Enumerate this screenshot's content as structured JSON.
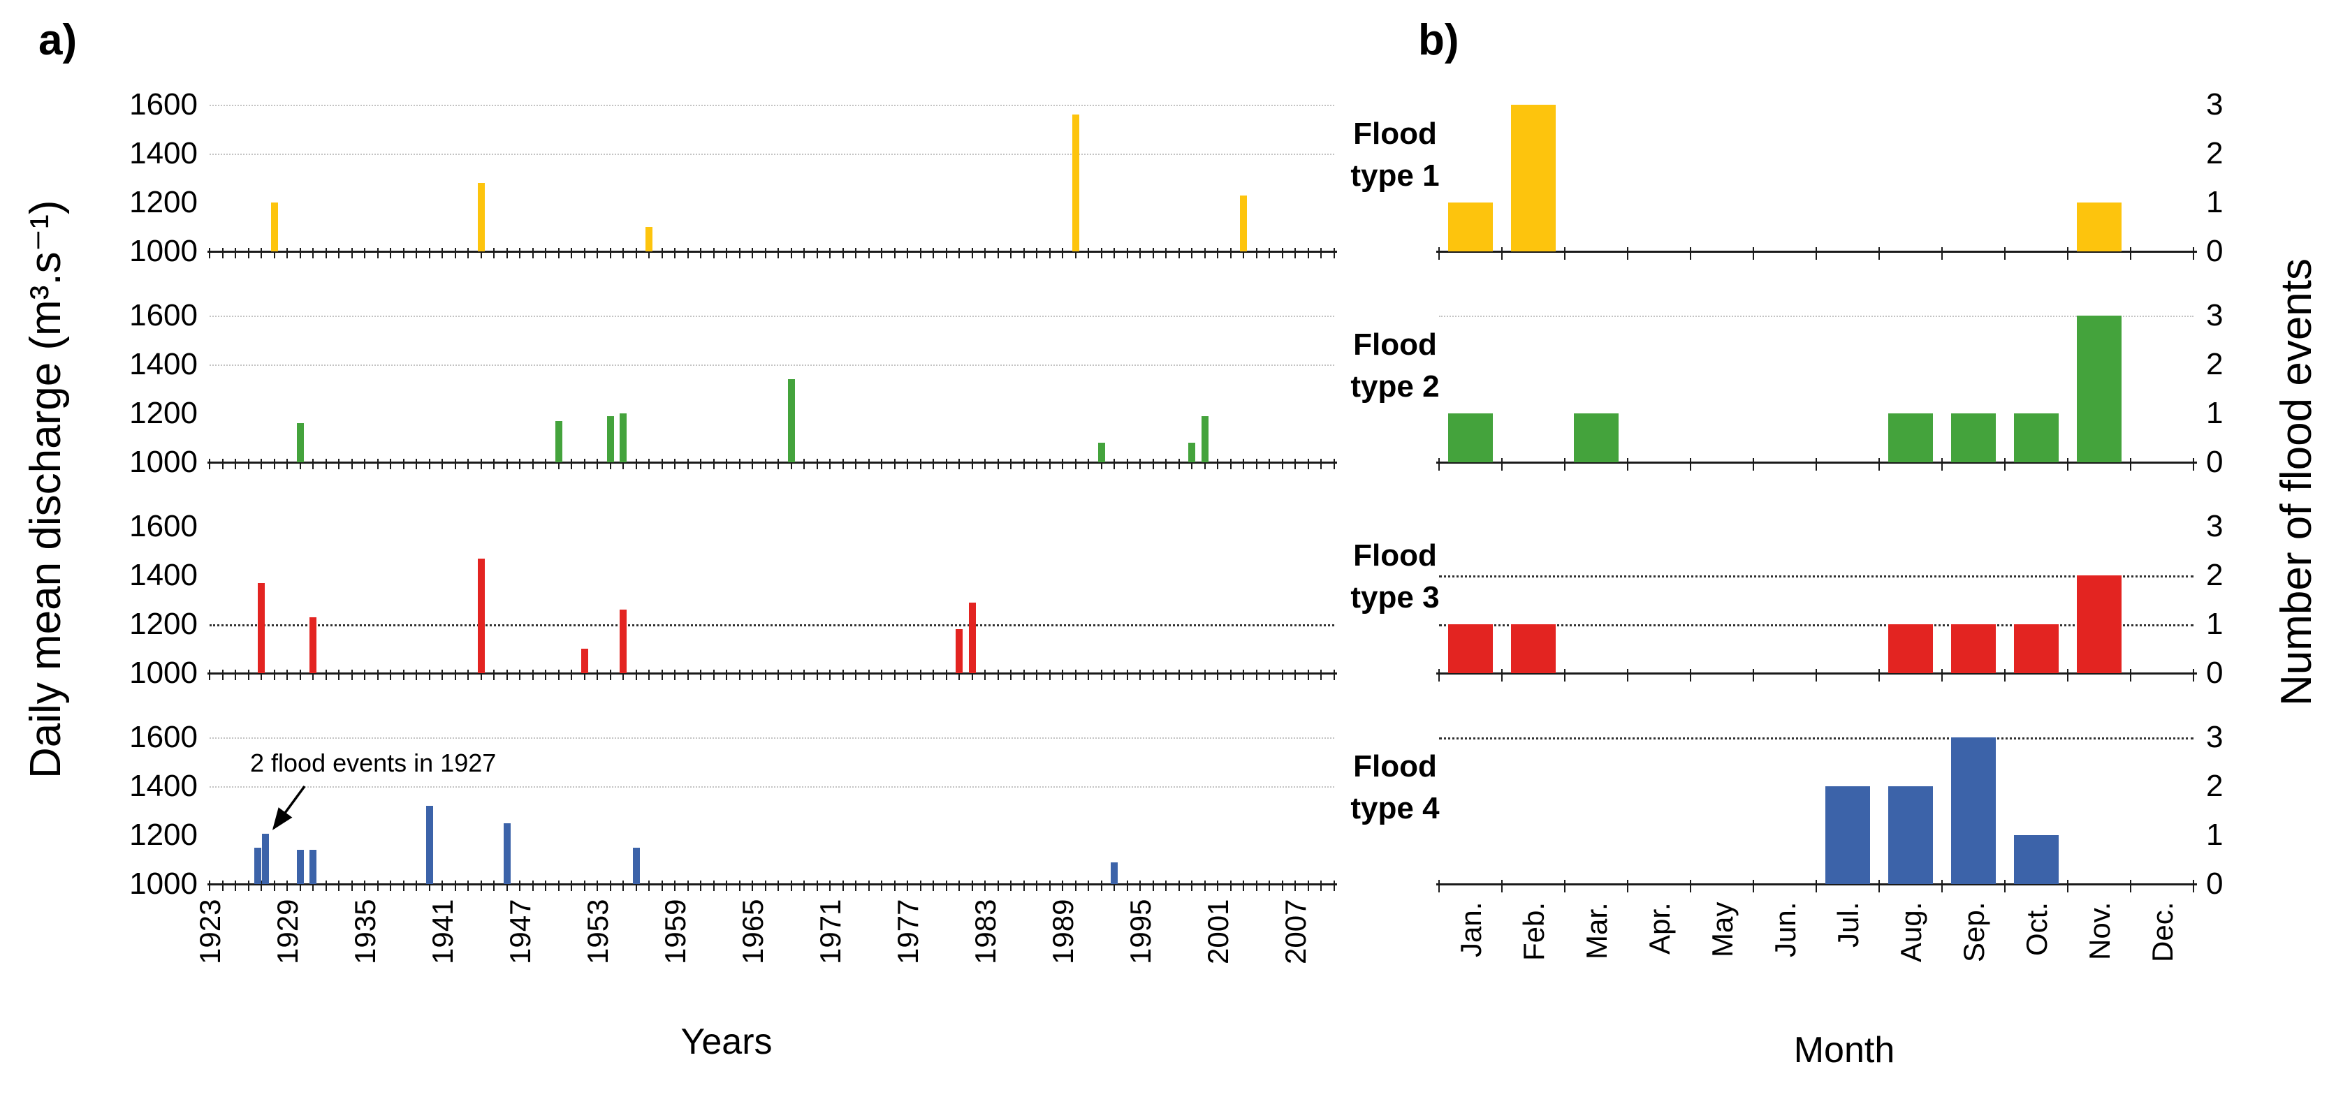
{
  "figure": {
    "panel_a_tag": "a)",
    "panel_b_tag": "b)",
    "background_color": "#ffffff",
    "axis_color": "#1a1a1a",
    "gridline_light_color": "#c3c3c3",
    "gridline_dark_color": "#2f2f2f"
  },
  "chart_data": {
    "type": "bar",
    "panel_a": {
      "x_axis": {
        "label": "Years",
        "start": 1923,
        "end": 2010,
        "tick_every_years": 1,
        "tick_labels": [
          1923,
          1929,
          1935,
          1941,
          1947,
          1953,
          1959,
          1965,
          1971,
          1977,
          1983,
          1989,
          1995,
          2001,
          2007
        ]
      },
      "y_axis": {
        "label": "Daily mean discharge (m³.s⁻¹)",
        "ticks": [
          1000,
          1200,
          1400,
          1600
        ],
        "ylim": [
          1000,
          1650
        ]
      },
      "charts": [
        {
          "flood_type": "Flood type 1",
          "color": "#FDC40D",
          "gridlines": {
            "light": [
              1400,
              1600
            ],
            "dark": []
          },
          "events": [
            {
              "year": 1928,
              "discharge": 1200
            },
            {
              "year": 1944,
              "discharge": 1280
            },
            {
              "year": 1957,
              "discharge": 1100
            },
            {
              "year": 1990,
              "discharge": 1560
            },
            {
              "year": 2003,
              "discharge": 1230
            }
          ]
        },
        {
          "flood_type": "Flood type 2",
          "color": "#44A33C",
          "gridlines": {
            "light": [
              1400,
              1600
            ],
            "dark": []
          },
          "events": [
            {
              "year": 1930,
              "discharge": 1160
            },
            {
              "year": 1950,
              "discharge": 1170
            },
            {
              "year": 1954,
              "discharge": 1190
            },
            {
              "year": 1955,
              "discharge": 1200
            },
            {
              "year": 1968,
              "discharge": 1340
            },
            {
              "year": 1992,
              "discharge": 1080
            },
            {
              "year": 1999,
              "discharge": 1080
            },
            {
              "year": 2000,
              "discharge": 1190
            }
          ]
        },
        {
          "flood_type": "Flood type 3",
          "color": "#E32421",
          "gridlines": {
            "light": [],
            "dark": [
              1200
            ]
          },
          "events": [
            {
              "year": 1927,
              "discharge": 1370
            },
            {
              "year": 1931,
              "discharge": 1230
            },
            {
              "year": 1944,
              "discharge": 1470
            },
            {
              "year": 1952,
              "discharge": 1100
            },
            {
              "year": 1955,
              "discharge": 1260
            },
            {
              "year": 1981,
              "discharge": 1180
            },
            {
              "year": 1982,
              "discharge": 1290
            }
          ]
        },
        {
          "flood_type": "Flood type 4",
          "color": "#3C63A9",
          "gridlines": {
            "light": [
              1400,
              1600
            ],
            "dark": []
          },
          "annotation": "2 flood events in 1927",
          "events": [
            {
              "year": 1927,
              "discharge": 1150
            },
            {
              "year": 1927,
              "discharge": 1205
            },
            {
              "year": 1930,
              "discharge": 1140
            },
            {
              "year": 1931,
              "discharge": 1140
            },
            {
              "year": 1940,
              "discharge": 1320
            },
            {
              "year": 1946,
              "discharge": 1250
            },
            {
              "year": 1956,
              "discharge": 1150
            },
            {
              "year": 1993,
              "discharge": 1090
            }
          ]
        }
      ]
    },
    "panel_b": {
      "x_axis": {
        "label": "Month",
        "categories": [
          "Jan.",
          "Feb.",
          "Mar.",
          "Apr.",
          "May",
          "Jun.",
          "Jul.",
          "Aug.",
          "Sep.",
          "Oct.",
          "Nov.",
          "Dec."
        ]
      },
      "y_axis": {
        "label": "Number of flood events",
        "ticks": [
          0,
          1,
          2,
          3
        ],
        "ylim": [
          0,
          3.6
        ]
      },
      "charts": [
        {
          "flood_type": "Flood type 1",
          "label_lines": [
            "Flood",
            "type 1"
          ],
          "color": "#FDC40D",
          "gridlines": {
            "light": [],
            "dark": []
          },
          "values": [
            1,
            3,
            0,
            0,
            0,
            0,
            0,
            0,
            0,
            0,
            1,
            0
          ]
        },
        {
          "flood_type": "Flood type 2",
          "label_lines": [
            "Flood",
            "type 2"
          ],
          "color": "#44A33C",
          "gridlines": {
            "light": [
              3
            ],
            "dark": []
          },
          "values": [
            1,
            0,
            1,
            0,
            0,
            0,
            0,
            1,
            1,
            1,
            3,
            0
          ]
        },
        {
          "flood_type": "Flood type 3",
          "label_lines": [
            "Flood",
            "type 3"
          ],
          "color": "#E32421",
          "gridlines": {
            "light": [],
            "dark": [
              1,
              2
            ]
          },
          "values": [
            1,
            1,
            0,
            0,
            0,
            0,
            0,
            1,
            1,
            1,
            2,
            0
          ]
        },
        {
          "flood_type": "Flood type 4",
          "label_lines": [
            "Flood",
            "type 4"
          ],
          "color": "#3C63A9",
          "gridlines": {
            "light": [],
            "dark": [
              3
            ]
          },
          "values": [
            0,
            0,
            0,
            0,
            0,
            0,
            2,
            2,
            3,
            1,
            0,
            0
          ]
        }
      ]
    }
  }
}
